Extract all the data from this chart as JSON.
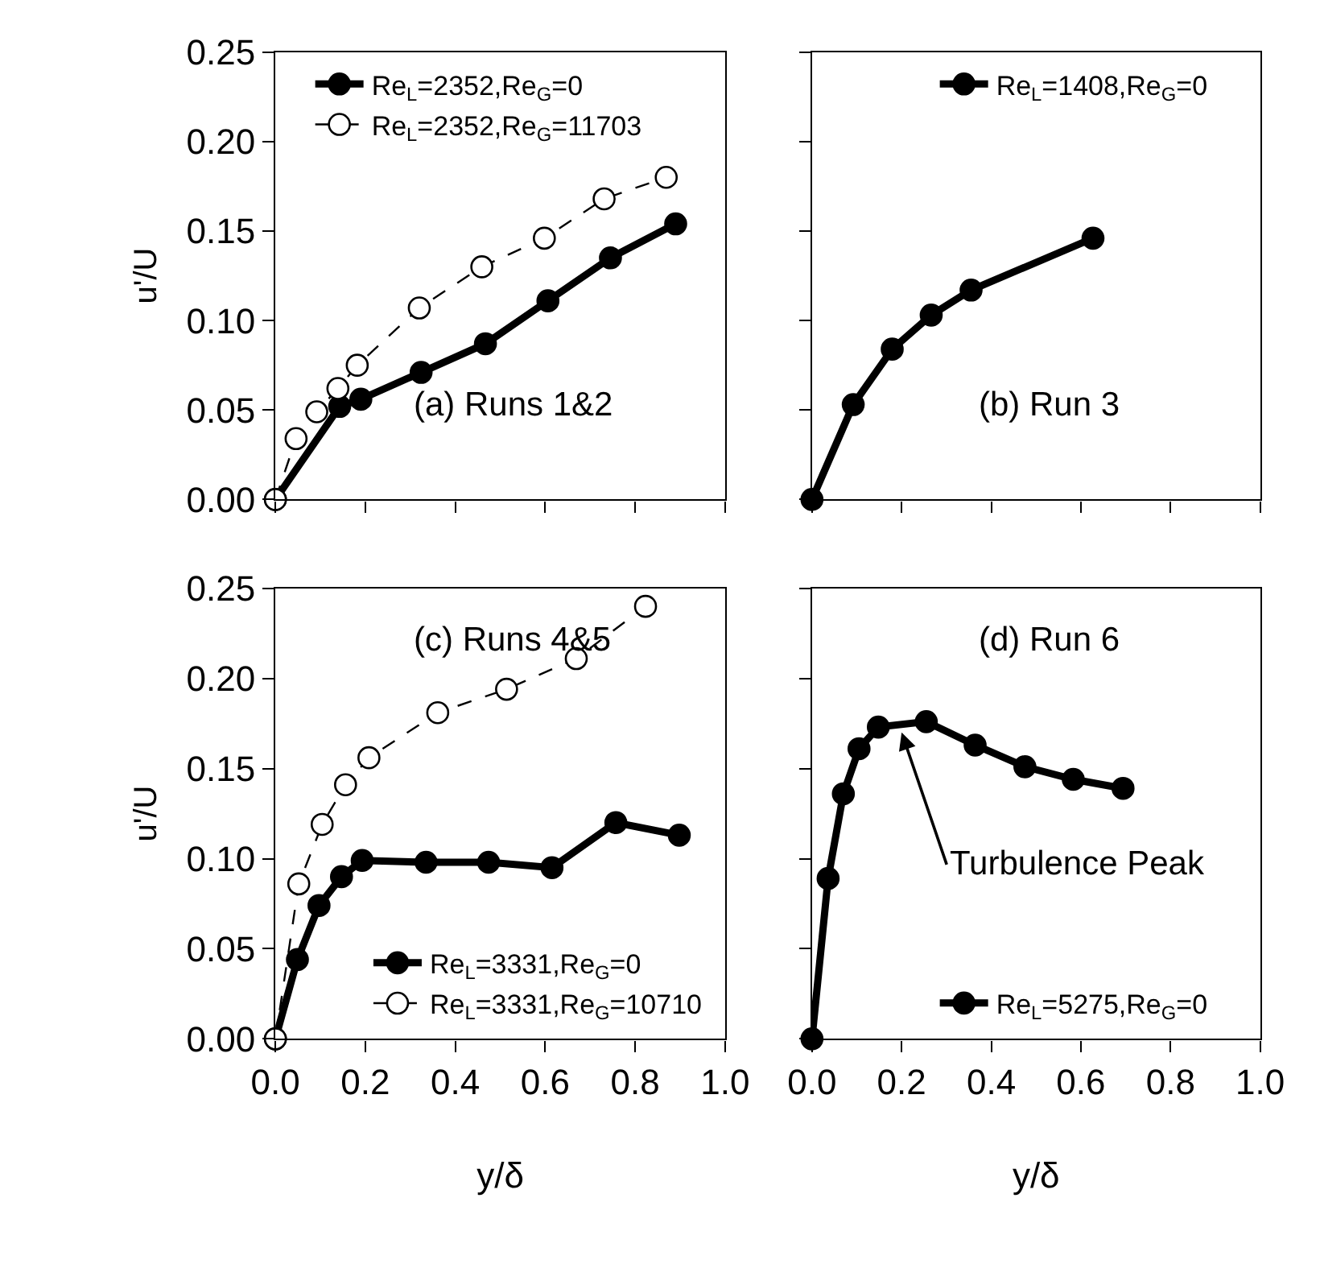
{
  "chart_data": [
    {
      "type": "line",
      "ylabel": "u'/U",
      "xlim": [
        0,
        1.0
      ],
      "ylim": [
        0,
        0.25
      ],
      "tick_labels": "y",
      "legend": "top left",
      "annotations": [
        "(a) Runs 1&2"
      ],
      "xticks": [
        {
          "value": 0,
          "label": null
        },
        {
          "value": 0.2,
          "label": null
        },
        {
          "value": 0.4,
          "label": null
        },
        {
          "value": 0.6,
          "label": null
        },
        {
          "value": 0.8,
          "label": null
        },
        {
          "value": 1.0,
          "label": null
        }
      ],
      "yticks": [
        {
          "value": 0,
          "label": "0.00"
        },
        0.05,
        {
          "value": 0.1,
          "label": "0.10"
        },
        0.15,
        {
          "value": 0.2,
          "label": "0.20"
        },
        0.25
      ],
      "series": [
        {
          "name": "Re$_{L}$=2352,Re$_{G}$=0",
          "color": "#000000",
          "marker": "circle",
          "line_style": "solid",
          "x": [
            0,
            0.143,
            0.19,
            0.324,
            0.467,
            0.606,
            0.745,
            0.89
          ],
          "values": [
            0,
            0.052,
            0.056,
            0.071,
            0.087,
            0.111,
            0.135,
            0.154
          ]
        },
        {
          "name": "Re$_{L}$=2352,Re$_{G}$=11703",
          "color": "#000000",
          "marker": "circle-open",
          "line_style": "dashed",
          "x": [
            0,
            0.046,
            0.092,
            0.139,
            0.182,
            0.32,
            0.459,
            0.598,
            0.731,
            0.869
          ],
          "values": [
            0,
            0.034,
            0.049,
            0.062,
            0.075,
            0.107,
            0.13,
            0.146,
            0.168,
            0.18
          ]
        }
      ]
    },
    {
      "type": "line",
      "xlim": [
        0,
        1.0
      ],
      "ylim": [
        0,
        0.25
      ],
      "tick_labels": false,
      "legend": "top",
      "annotations": [
        "(b) Run 3"
      ],
      "xticks": [
        {
          "value": 0,
          "label": null
        },
        {
          "value": 0.2,
          "label": null
        },
        {
          "value": 0.4,
          "label": null
        },
        {
          "value": 0.6,
          "label": null
        },
        {
          "value": 0.8,
          "label": null
        },
        {
          "value": 1.0,
          "label": null
        }
      ],
      "yticks": [
        {
          "value": 0,
          "label": null
        },
        {
          "value": 0.05,
          "label": null
        },
        {
          "value": 0.1,
          "label": null
        },
        {
          "value": 0.15,
          "label": null
        },
        {
          "value": 0.2,
          "label": null
        },
        {
          "value": 0.25,
          "label": null
        }
      ],
      "series": [
        {
          "name": "Re$_{L}$=1408,Re$_{G}$=0",
          "color": "#000000",
          "marker": "circle",
          "line_style": "solid",
          "x": [
            0,
            0.092,
            0.179,
            0.266,
            0.355,
            0.627
          ],
          "values": [
            0,
            0.053,
            0.084,
            0.103,
            0.117,
            0.146
          ]
        }
      ]
    },
    {
      "type": "line",
      "xlabel": "y/δ",
      "ylabel": "u'/U",
      "xlim": [
        0,
        1.0
      ],
      "ylim": [
        0,
        0.25
      ],
      "legend": "bottom",
      "annotations": [
        "(c) Runs 4&5"
      ],
      "xticks": [
        {
          "value": 0,
          "label": "0.0"
        },
        {
          "value": 0.2,
          "label": "0.2"
        },
        {
          "value": 0.4,
          "label": "0.4"
        },
        {
          "value": 0.6,
          "label": "0.6"
        },
        {
          "value": 0.8,
          "label": "0.8"
        },
        {
          "value": 1.0,
          "label": "1.0"
        }
      ],
      "yticks": [
        {
          "value": 0,
          "label": "0.00"
        },
        0.05,
        {
          "value": 0.1,
          "label": "0.10"
        },
        0.15,
        {
          "value": 0.2,
          "label": "0.20"
        },
        0.25
      ],
      "series": [
        {
          "name": "Re$_{L}$=3331,Re$_{G}$=0",
          "color": "#000000",
          "marker": "circle",
          "line_style": "solid",
          "x": [
            0,
            0.049,
            0.097,
            0.147,
            0.193,
            0.335,
            0.474,
            0.615,
            0.757,
            0.898
          ],
          "values": [
            0,
            0.044,
            0.074,
            0.09,
            0.099,
            0.098,
            0.098,
            0.095,
            0.12,
            0.113
          ]
        },
        {
          "name": "Re$_{L}$=3331,Re$_{G}$=10710",
          "color": "#000000",
          "marker": "circle-open",
          "line_style": "dashed",
          "x": [
            0,
            0.052,
            0.104,
            0.156,
            0.208,
            0.361,
            0.514,
            0.669,
            0.823
          ],
          "values": [
            0,
            0.086,
            0.119,
            0.141,
            0.156,
            0.181,
            0.194,
            0.211,
            0.24
          ]
        }
      ]
    },
    {
      "type": "line",
      "xlabel": "y/δ",
      "xlim": [
        0,
        1.0
      ],
      "ylim": [
        0,
        0.25
      ],
      "tick_labels": "x",
      "legend": "bottom",
      "annotations": [
        "(d) Run 6",
        {
          "text": "Turbulence Peak",
          "x": 0.2,
          "y": 0.17
        }
      ],
      "xticks": [
        {
          "value": 0,
          "label": "0.0"
        },
        {
          "value": 0.2,
          "label": "0.2"
        },
        {
          "value": 0.4,
          "label": "0.4"
        },
        {
          "value": 0.6,
          "label": "0.6"
        },
        {
          "value": 0.8,
          "label": "0.8"
        },
        {
          "value": 1.0,
          "label": "1.0"
        }
      ],
      "yticks": [
        {
          "value": 0,
          "label": null
        },
        {
          "value": 0.05,
          "label": null
        },
        {
          "value": 0.1,
          "label": null
        },
        {
          "value": 0.15,
          "label": null
        },
        {
          "value": 0.2,
          "label": null
        },
        {
          "value": 0.25,
          "label": null
        }
      ],
      "series": [
        {
          "name": "Re$_{L}$=5275,Re$_{G}$=0",
          "color": "#000000",
          "marker": "circle",
          "line_style": "solid",
          "x": [
            0,
            0.036,
            0.07,
            0.105,
            0.148,
            0.255,
            0.364,
            0.475,
            0.583,
            0.694
          ],
          "values": [
            0,
            0.089,
            0.136,
            0.161,
            0.173,
            0.176,
            0.163,
            0.151,
            0.144,
            0.139
          ]
        }
      ]
    }
  ]
}
